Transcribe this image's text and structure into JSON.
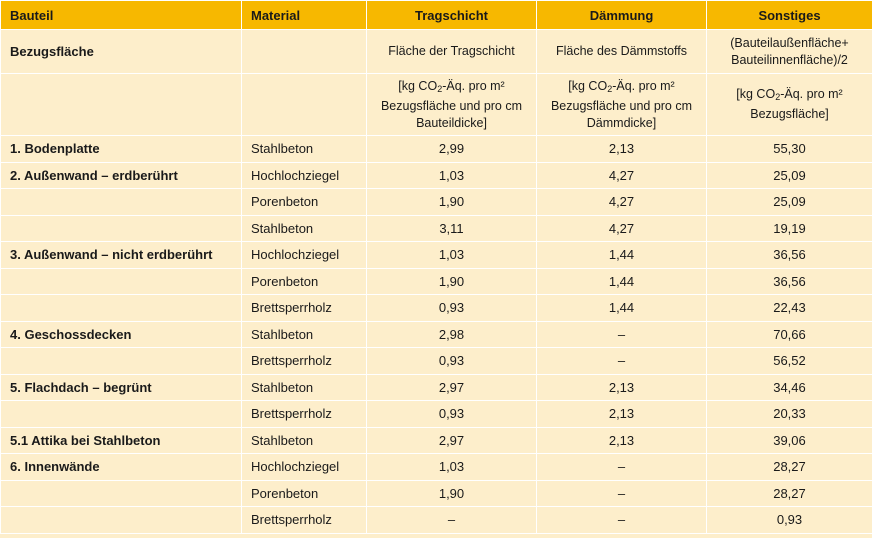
{
  "headers": {
    "bauteil": "Bauteil",
    "material": "Material",
    "tragschicht": "Tragschicht",
    "daemmung": "Dämmung",
    "sonstiges": "Sonstiges"
  },
  "bezugsflaeche": {
    "label": "Bezugsfläche",
    "tragschicht": "Fläche der Tragschicht",
    "daemmung": "Fläche des Dämmstoffs",
    "sonstiges_line1": "(Bauteilaußenfläche+",
    "sonstiges_line2": "Bauteilinnenfläche)/2"
  },
  "units": {
    "tragschicht": [
      "[kg CO",
      "2",
      "-Äq. pro m²",
      "Bezugsfläche und pro cm",
      "Bauteildicke]"
    ],
    "daemmung": [
      "[kg CO",
      "2",
      "-Äq. pro m²",
      "Bezugsfläche und pro cm",
      "Dämmdicke]"
    ],
    "sonstiges": [
      "[kg CO",
      "2",
      "-Äq. pro m²",
      "Bezugsfläche]"
    ]
  },
  "rows": [
    {
      "bauteil": "1. Bodenplatte",
      "material": "Stahlbeton",
      "tragschicht": "2,99",
      "daemmung": "2,13",
      "sonstiges": "55,30"
    },
    {
      "bauteil": "2. Außenwand – erdberührt",
      "material": "Hochlochziegel",
      "tragschicht": "1,03",
      "daemmung": "4,27",
      "sonstiges": "25,09"
    },
    {
      "bauteil": "",
      "material": "Porenbeton",
      "tragschicht": "1,90",
      "daemmung": "4,27",
      "sonstiges": "25,09"
    },
    {
      "bauteil": "",
      "material": "Stahlbeton",
      "tragschicht": "3,11",
      "daemmung": "4,27",
      "sonstiges": "19,19"
    },
    {
      "bauteil": "3. Außenwand – nicht erdberührt",
      "material": "Hochlochziegel",
      "tragschicht": "1,03",
      "daemmung": "1,44",
      "sonstiges": "36,56"
    },
    {
      "bauteil": "",
      "material": "Porenbeton",
      "tragschicht": "1,90",
      "daemmung": "1,44",
      "sonstiges": "36,56"
    },
    {
      "bauteil": "",
      "material": "Brettsperrholz",
      "tragschicht": "0,93",
      "daemmung": "1,44",
      "sonstiges": "22,43"
    },
    {
      "bauteil": "4. Geschossdecken",
      "material": "Stahlbeton",
      "tragschicht": "2,98",
      "daemmung": "–",
      "sonstiges": "70,66"
    },
    {
      "bauteil": "",
      "material": "Brettsperrholz",
      "tragschicht": "0,93",
      "daemmung": "–",
      "sonstiges": "56,52"
    },
    {
      "bauteil": "5. Flachdach – begrünt",
      "material": "Stahlbeton",
      "tragschicht": "2,97",
      "daemmung": "2,13",
      "sonstiges": "34,46"
    },
    {
      "bauteil": "",
      "material": "Brettsperrholz",
      "tragschicht": "0,93",
      "daemmung": "2,13",
      "sonstiges": "20,33"
    },
    {
      "bauteil": "5.1 Attika bei Stahlbeton",
      "material": "Stahlbeton",
      "tragschicht": "2,97",
      "daemmung": "2,13",
      "sonstiges": "39,06"
    },
    {
      "bauteil": "6. Innenwände",
      "material": "Hochlochziegel",
      "tragschicht": "1,03",
      "daemmung": "–",
      "sonstiges": "28,27"
    },
    {
      "bauteil": "",
      "material": "Porenbeton",
      "tragschicht": "1,90",
      "daemmung": "–",
      "sonstiges": "28,27"
    },
    {
      "bauteil": "",
      "material": "Brettsperrholz",
      "tragschicht": "–",
      "daemmung": "–",
      "sonstiges": "0,93"
    }
  ]
}
